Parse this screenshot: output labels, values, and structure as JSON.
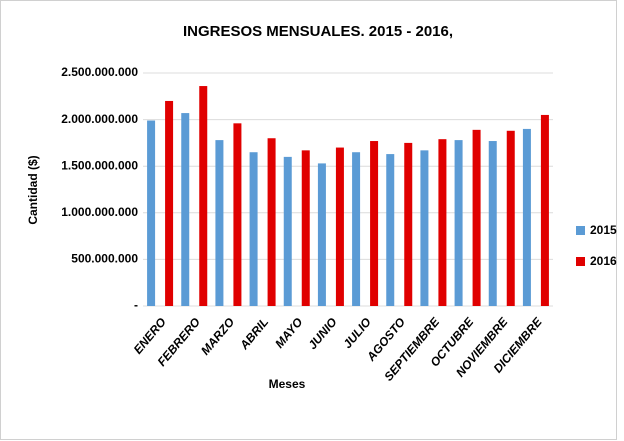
{
  "chart_data": {
    "type": "bar",
    "title": "INGRESOS MENSUALES.  2015 - 2016,",
    "x_label": "Meses",
    "y_label": "Cantidad  ($)",
    "categories": [
      "ENERO",
      "FEBRERO",
      "MARZO",
      "ABRIL",
      "MAYO",
      "JUNIO",
      "JULIO",
      "AGOSTO",
      "SEPTIEMBRE",
      "OCTUBRE",
      "NOVIEMBRE",
      "DICIEMBRE"
    ],
    "series": [
      {
        "name": "2015",
        "color": "#5b9bd5",
        "values": [
          1990000000,
          2070000000,
          1780000000,
          1650000000,
          1600000000,
          1530000000,
          1650000000,
          1630000000,
          1670000000,
          1780000000,
          1770000000,
          1900000000
        ]
      },
      {
        "name": "2016",
        "color": "#e00000",
        "values": [
          2200000000,
          2360000000,
          1960000000,
          1800000000,
          1670000000,
          1700000000,
          1770000000,
          1750000000,
          1790000000,
          1890000000,
          1880000000,
          2050000000
        ]
      }
    ],
    "ylim": [
      0,
      2500000000
    ],
    "yticks": [
      {
        "value": 0,
        "label": "-"
      },
      {
        "value": 500000000,
        "label": "500.000.000"
      },
      {
        "value": 1000000000,
        "label": "1.000.000.000"
      },
      {
        "value": 1500000000,
        "label": "1.500.000.000"
      },
      {
        "value": 2000000000,
        "label": "2.000.000.000"
      },
      {
        "value": 2500000000,
        "label": "2.500.000.000"
      }
    ],
    "grid": true,
    "legend": "right"
  }
}
